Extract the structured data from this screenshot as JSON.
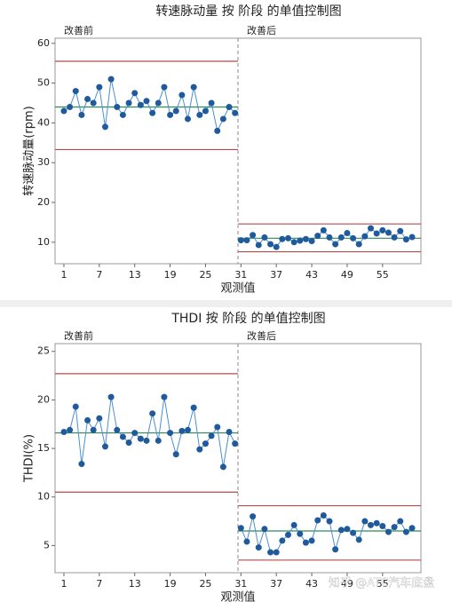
{
  "chart_data": [
    {
      "type": "control",
      "title": "转速脉动量 按 阶段 的单值控制图",
      "x_label": "观测值",
      "y_label": "转速脉动量(rpm)",
      "xlim": [
        -0.5,
        61.5
      ],
      "xticks": [
        1,
        7,
        13,
        19,
        25,
        31,
        37,
        43,
        49,
        55
      ],
      "ylim": [
        4.6,
        61.3
      ],
      "yticks": [
        10,
        20,
        30,
        40,
        50,
        60
      ],
      "point_color": "#1f5a9c",
      "line_color": "#4a8fd0",
      "center_color": "#2e8b57",
      "limit_color": "#b84a4a",
      "phases": [
        {
          "label": "改善前",
          "center": 44,
          "ucl": 55.5,
          "lcl": 33.3,
          "x": [
            1,
            2,
            3,
            4,
            5,
            6,
            7,
            8,
            9,
            10,
            11,
            12,
            13,
            14,
            15,
            16,
            17,
            18,
            19,
            20,
            21,
            22,
            23,
            24,
            25,
            26,
            27,
            28,
            29,
            30
          ],
          "values": [
            43,
            44,
            48,
            42,
            46,
            45,
            49,
            39,
            51,
            44,
            42,
            45,
            47.5,
            44.5,
            45.5,
            42.5,
            45,
            49,
            42,
            43,
            47,
            41,
            49,
            42,
            43,
            45,
            38,
            41,
            44,
            42.5
          ]
        },
        {
          "label": "改善后",
          "center": 11,
          "ucl": 14.6,
          "lcl": 7.6,
          "x": [
            31,
            32,
            33,
            34,
            35,
            36,
            37,
            38,
            39,
            40,
            41,
            42,
            43,
            44,
            45,
            46,
            47,
            48,
            49,
            50,
            51,
            52,
            53,
            54,
            55,
            56,
            57,
            58,
            59,
            60
          ],
          "values": [
            10.5,
            10.5,
            11.8,
            9.3,
            11.2,
            9.5,
            8.8,
            10.8,
            11,
            10,
            10.4,
            10.8,
            10.3,
            11.6,
            13,
            11.2,
            9.5,
            11.2,
            12.3,
            11,
            9.5,
            11.5,
            13.5,
            12.2,
            13,
            12.4,
            11.2,
            12.8,
            10.7,
            11.3
          ]
        }
      ]
    },
    {
      "type": "control",
      "title": "THDI 按 阶段 的单值控制图",
      "x_label": "观测值",
      "y_label": "THDI(%)",
      "xlim": [
        -0.5,
        61.5
      ],
      "xticks": [
        1,
        7,
        13,
        19,
        25,
        31,
        37,
        43,
        49,
        55
      ],
      "ylim": [
        2.2,
        25.8
      ],
      "yticks": [
        5,
        10,
        15,
        20,
        25
      ],
      "point_color": "#1f5a9c",
      "line_color": "#4a8fd0",
      "center_color": "#2e8b57",
      "limit_color": "#b84a4a",
      "phases": [
        {
          "label": "改善前",
          "center": 16.6,
          "ucl": 22.7,
          "lcl": 10.5,
          "x": [
            1,
            2,
            3,
            4,
            5,
            6,
            7,
            8,
            9,
            10,
            11,
            12,
            13,
            14,
            15,
            16,
            17,
            18,
            19,
            20,
            21,
            22,
            23,
            24,
            25,
            26,
            27,
            28,
            29,
            30
          ],
          "values": [
            16.7,
            16.9,
            19.3,
            13.4,
            17.9,
            16.9,
            18.1,
            15.2,
            20.3,
            16.9,
            16.2,
            15.6,
            16.6,
            16,
            15.8,
            18.6,
            15.8,
            20.3,
            16.6,
            14.4,
            16.8,
            16.9,
            19.2,
            14.9,
            15.5,
            16.3,
            17.2,
            13.1,
            16.7,
            15.5
          ]
        },
        {
          "label": "改善后",
          "center": 6.5,
          "ucl": 9.1,
          "lcl": 3.5,
          "x": [
            31,
            32,
            33,
            34,
            35,
            36,
            37,
            38,
            39,
            40,
            41,
            42,
            43,
            44,
            45,
            46,
            47,
            48,
            49,
            50,
            51,
            52,
            53,
            54,
            55,
            56,
            57,
            58,
            59,
            60
          ],
          "values": [
            6.8,
            5.4,
            8,
            4.8,
            6.7,
            4.3,
            4.3,
            5.5,
            6.1,
            7.1,
            6.2,
            5.3,
            5.5,
            7.6,
            8.1,
            7.5,
            4.6,
            6.6,
            6.7,
            6.3,
            5.6,
            7.5,
            7.1,
            7.3,
            7,
            6.4,
            6.9,
            7.5,
            6.4,
            6.8
          ]
        }
      ]
    }
  ],
  "watermark": "知乎 @ATC汽车底盘"
}
